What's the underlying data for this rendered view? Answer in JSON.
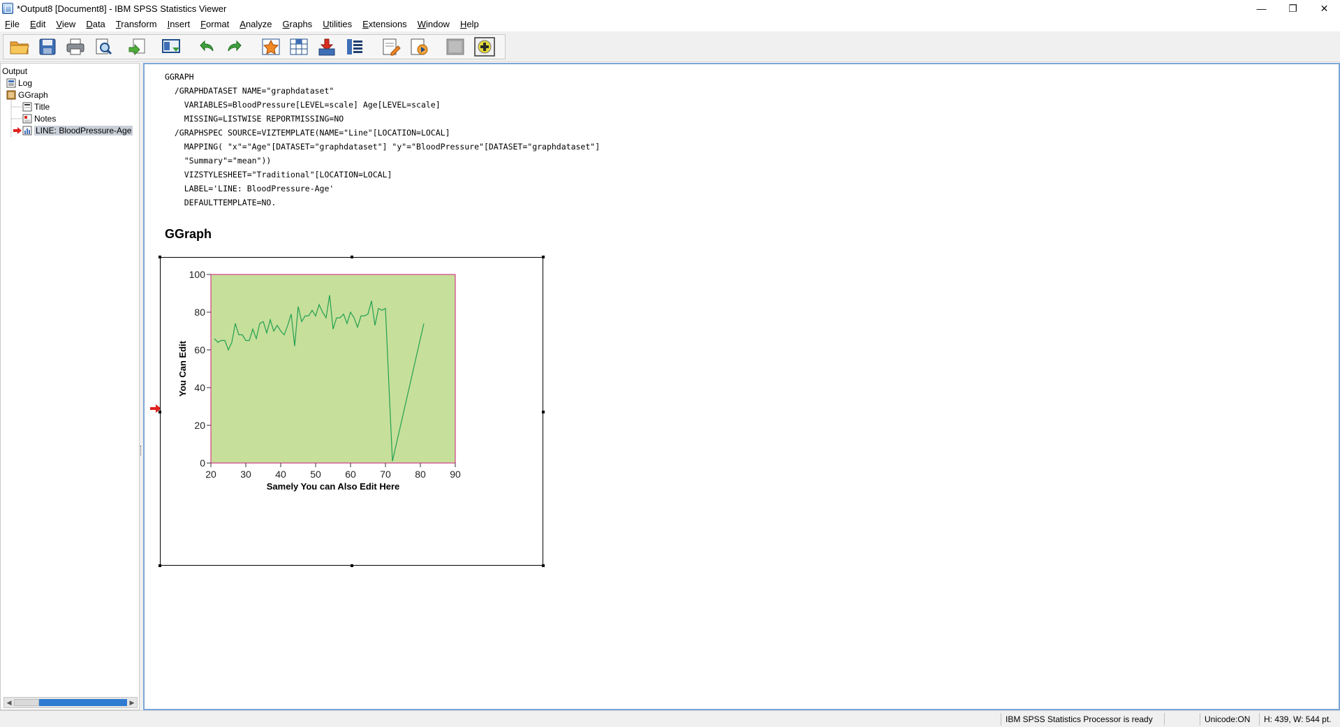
{
  "window": {
    "title": "*Output8 [Document8] - IBM SPSS Statistics Viewer",
    "controls": {
      "minimize": "—",
      "restore": "❐",
      "close": "✕"
    }
  },
  "menu": [
    {
      "label": "File"
    },
    {
      "label": "Edit"
    },
    {
      "label": "View"
    },
    {
      "label": "Data"
    },
    {
      "label": "Transform"
    },
    {
      "label": "Insert"
    },
    {
      "label": "Format"
    },
    {
      "label": "Analyze"
    },
    {
      "label": "Graphs"
    },
    {
      "label": "Utilities"
    },
    {
      "label": "Extensions"
    },
    {
      "label": "Window"
    },
    {
      "label": "Help"
    }
  ],
  "toolbar": {
    "icons": [
      "open-folder-icon",
      "save-icon",
      "print-icon",
      "print-preview-icon",
      "export-icon",
      "goto-data-icon",
      "undo-icon",
      "redo-icon",
      "goto-case-icon",
      "goto-variable-icon",
      "insert-output-icon",
      "show-all-icon",
      "designate-window-icon",
      "create-edit-autoscript-icon",
      "run-script-icon",
      "disabled-icon",
      "add-extension-icon"
    ]
  },
  "navigator": {
    "root": "Output",
    "items": [
      {
        "label": "Log",
        "icon": "log-icon"
      },
      {
        "label": "GGraph",
        "icon": "ggraph-book-icon"
      },
      {
        "label": "Title",
        "icon": "title-icon"
      },
      {
        "label": "Notes",
        "icon": "notes-icon"
      },
      {
        "label": "LINE: BloodPressure-Age",
        "icon": "chart-icon",
        "selected": true
      }
    ]
  },
  "syntax": {
    "lines": [
      "GGRAPH",
      "  /GRAPHDATASET NAME=\"graphdataset\"",
      "    VARIABLES=BloodPressure[LEVEL=scale] Age[LEVEL=scale]",
      "    MISSING=LISTWISE REPORTMISSING=NO",
      "  /GRAPHSPEC SOURCE=VIZTEMPLATE(NAME=\"Line\"[LOCATION=LOCAL]",
      "    MAPPING( \"x\"=\"Age\"[DATASET=\"graphdataset\"] \"y\"=\"BloodPressure\"[DATASET=\"graphdataset\"]",
      "    \"Summary\"=\"mean\"))",
      "    VIZSTYLESHEET=\"Traditional\"[LOCATION=LOCAL]",
      "    LABEL='LINE: BloodPressure-Age'",
      "    DEFAULTTEMPLATE=NO."
    ]
  },
  "output": {
    "heading": "GGraph"
  },
  "chart_data": {
    "type": "line",
    "title": "",
    "xlabel": "Samely You can Also Edit Here",
    "ylabel": "You Can Edit",
    "xlim": [
      20,
      90
    ],
    "ylim": [
      0,
      100
    ],
    "xticks": [
      "20",
      "30",
      "40",
      "50",
      "60",
      "70",
      "80",
      "90"
    ],
    "yticks": [
      "0",
      "20",
      "40",
      "60",
      "80",
      "100"
    ],
    "grid": false,
    "plot_background": "#c6df9b",
    "plot_border": "#d0197a",
    "line_color": "#22a050",
    "series": [
      {
        "x": [
          21,
          22,
          23,
          24,
          25,
          26,
          27,
          28,
          29,
          30,
          31,
          32,
          33,
          34,
          35,
          36,
          37,
          38,
          39,
          40,
          41,
          42,
          43,
          44,
          45,
          46,
          47,
          48,
          49,
          50,
          51,
          52,
          53,
          54,
          55,
          56,
          57,
          58,
          59,
          60,
          61,
          62,
          63,
          64,
          65,
          66,
          67,
          68,
          69,
          70,
          71,
          72,
          81
        ],
        "y": [
          66,
          64,
          65,
          65,
          60,
          64,
          74,
          68,
          68,
          65,
          65,
          71,
          66,
          74,
          75,
          69,
          76,
          70,
          73,
          70,
          68,
          73,
          79,
          62,
          83,
          75,
          78,
          78,
          81,
          78,
          84,
          80,
          77,
          89,
          71,
          77,
          77,
          79,
          74,
          80,
          77,
          72,
          78,
          78,
          79,
          86,
          73,
          82,
          81,
          82,
          41,
          1,
          74
        ]
      }
    ]
  },
  "status": {
    "processor": "IBM SPSS Statistics Processor is ready",
    "unicode": "Unicode:ON",
    "size": "H: 439, W: 544 pt."
  }
}
